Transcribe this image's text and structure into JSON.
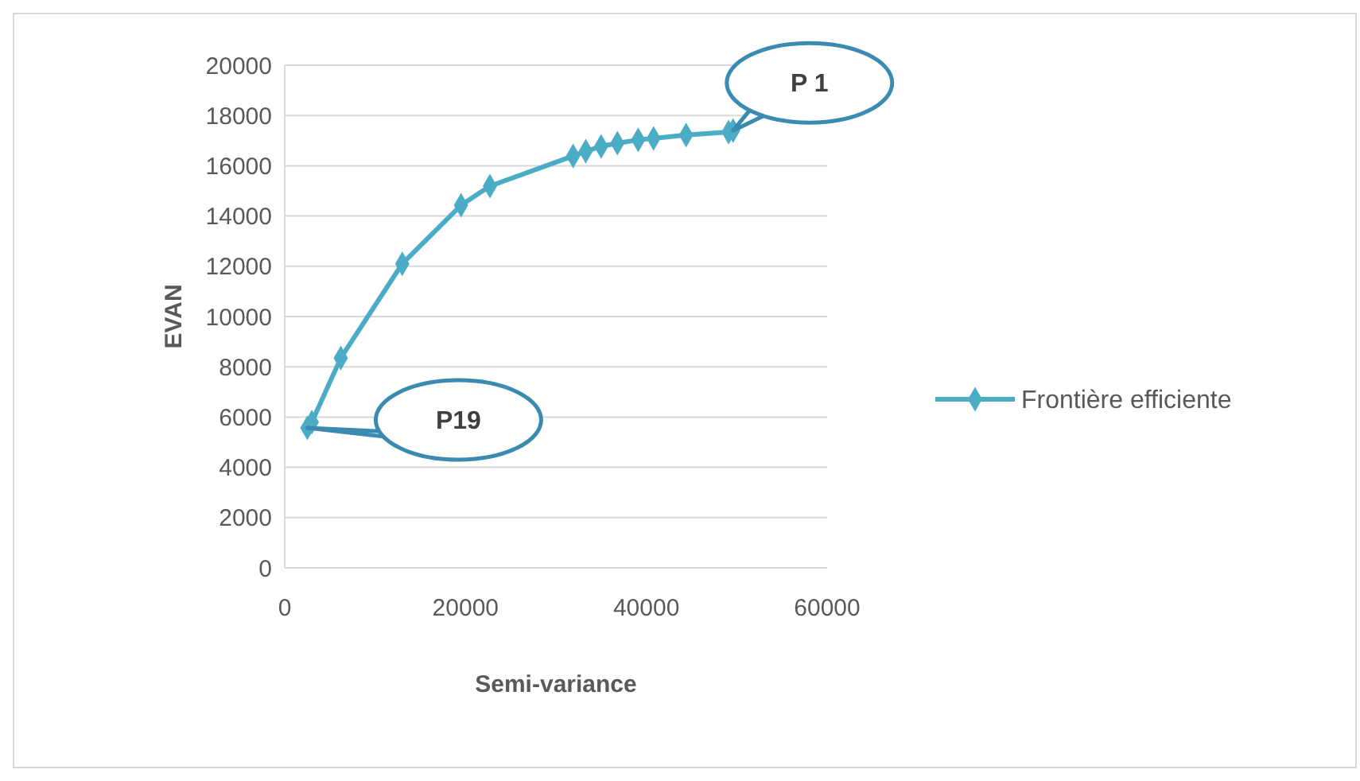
{
  "chart_data": {
    "type": "line",
    "xlabel": "Semi-variance",
    "ylabel": "EVAN",
    "x": [
      2500,
      3000,
      6200,
      13000,
      19500,
      22700,
      31900,
      33300,
      35000,
      36800,
      39100,
      40800,
      44400,
      49100,
      49600
    ],
    "series": [
      {
        "name": "Frontière efficiente",
        "color": "#4bacc6",
        "values": [
          5570,
          5800,
          8350,
          12100,
          14430,
          15190,
          16390,
          16580,
          16770,
          16900,
          17030,
          17090,
          17220,
          17340,
          17400
        ]
      }
    ],
    "xlim": [
      0,
      60000
    ],
    "xticks": [
      0,
      20000,
      40000,
      60000
    ],
    "ylim": [
      0,
      20000
    ],
    "yticks": [
      0,
      2000,
      4000,
      6000,
      8000,
      10000,
      12000,
      14000,
      16000,
      18000,
      20000
    ],
    "grid": "y",
    "legend": "right",
    "marker": "diamond",
    "line_style": "solid",
    "annotations": [
      {
        "text": "P 1",
        "x": 49600,
        "y": 17400
      },
      {
        "text": "P19",
        "x": 2500,
        "y": 5570
      }
    ]
  }
}
